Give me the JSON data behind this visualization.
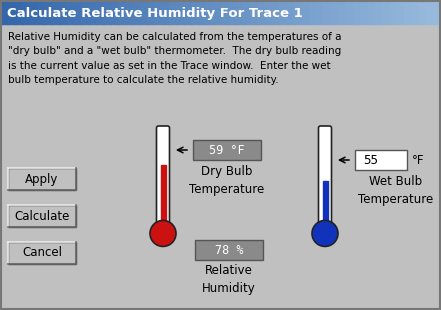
{
  "title": "Calculate Relative Humidity For Trace 1",
  "title_bg_start": "#3366aa",
  "title_bg_end": "#99bbdd",
  "body_bg": "#c0c0c0",
  "description": "Relative Humidity can be calculated from the temperatures of a\n\"dry bulb\" and a \"wet bulb\" thermometer.  The dry bulb reading\nis the current value as set in the Trace window.  Enter the wet\nbulb temperature to calculate the relative humidity.",
  "dry_bulb_value": "59 °F",
  "dry_bulb_label": "Dry Bulb\nTemperature",
  "wet_bulb_value": "55",
  "wet_bulb_unit": "°F",
  "wet_bulb_label": "Wet Bulb\nTemperature",
  "humidity_value": "78 %",
  "humidity_label": "Relative\nHumidity",
  "buttons": [
    "Apply",
    "Calculate",
    "Cancel"
  ],
  "thermo_red_color": "#cc1111",
  "thermo_blue_color": "#1133bb",
  "display_bg": "#8a8a8a",
  "input_bg": "#ffffff"
}
